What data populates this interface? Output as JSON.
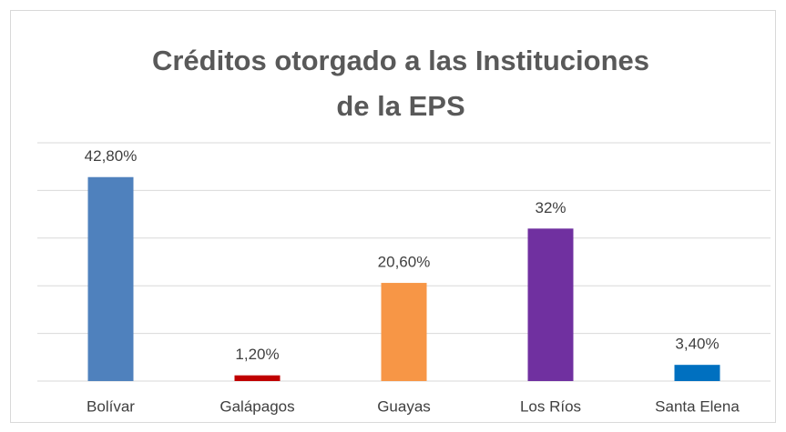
{
  "chart_data": {
    "type": "bar",
    "title": "Créditos otorgado a las Instituciones de la EPS",
    "categories": [
      "Bolívar",
      "Galápagos",
      "Guayas",
      "Los Ríos",
      "Santa Elena"
    ],
    "values": [
      42.8,
      1.2,
      20.6,
      32,
      3.4
    ],
    "value_labels": [
      "42,80%",
      "1,20%",
      "20,60%",
      "32%",
      "3,40%"
    ],
    "colors": [
      "#4f81bd",
      "#c00000",
      "#f79646",
      "#7030a0",
      "#0070c0"
    ],
    "ylim": [
      0,
      50
    ],
    "yticks": [
      0,
      10,
      20,
      30,
      40,
      50
    ],
    "grid": true
  }
}
